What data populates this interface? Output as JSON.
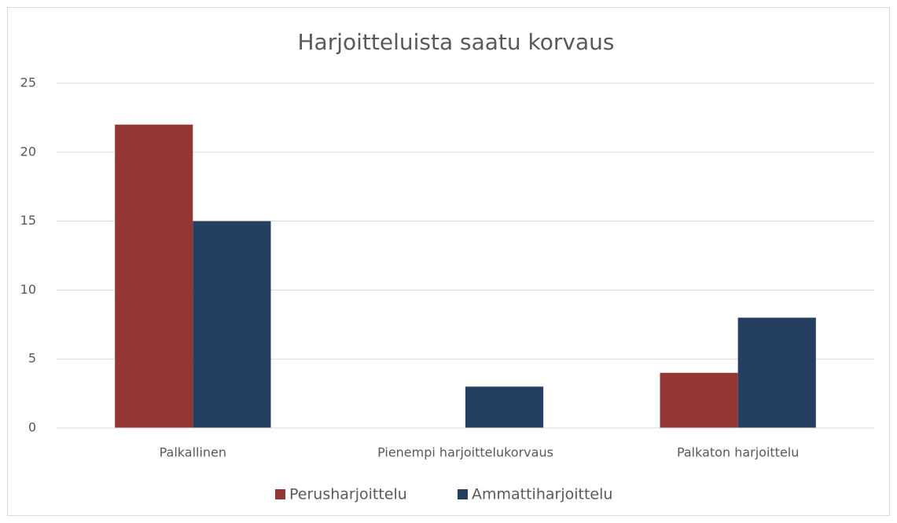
{
  "chart_data": {
    "type": "bar",
    "title": "Harjoitteluista saatu korvaus",
    "categories": [
      "Palkallinen",
      "Pienempi harjoittelukorvaus",
      "Palkaton harjoittelu"
    ],
    "series": [
      {
        "name": "Perusharjoittelu",
        "color": "#943634",
        "values": [
          22,
          0,
          4
        ]
      },
      {
        "name": "Ammattiharjoittelu",
        "color": "#243f60",
        "values": [
          15,
          3,
          8
        ]
      }
    ],
    "ylim": [
      0,
      25
    ],
    "yticks": [
      0,
      5,
      10,
      15,
      20,
      25
    ],
    "grid": true,
    "legend": "bottom"
  }
}
